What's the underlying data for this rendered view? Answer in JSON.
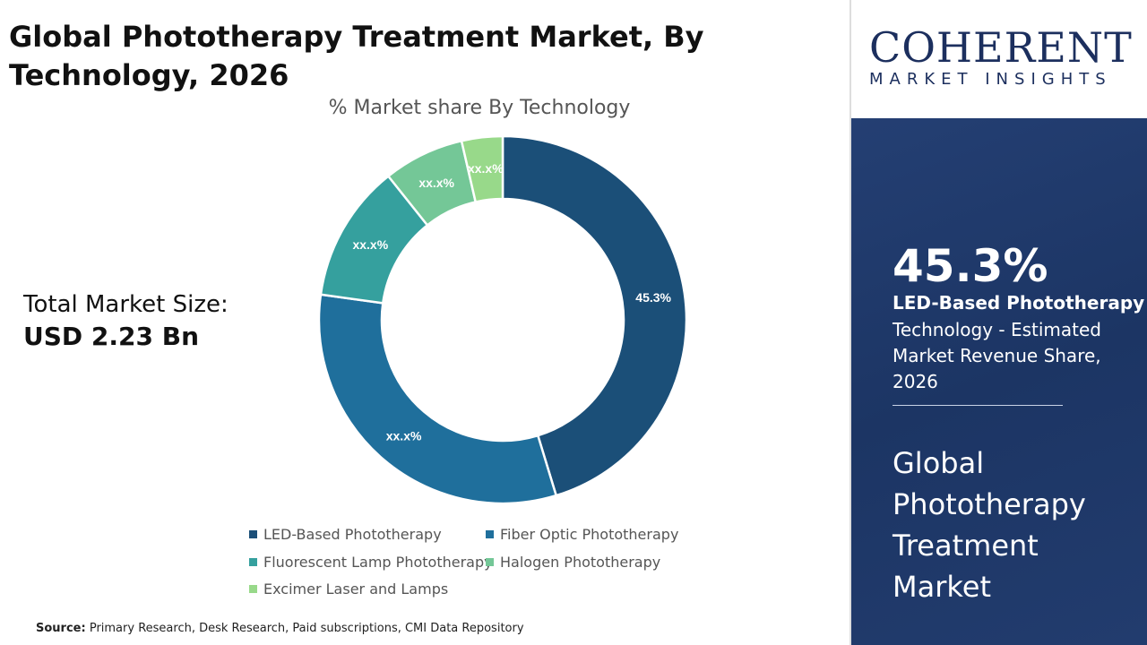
{
  "header": {
    "title": "Global Phototherapy Treatment Market, By Technology, 2026"
  },
  "total": {
    "label": "Total Market Size:",
    "value": "USD 2.23 Bn"
  },
  "source": {
    "label": "Source:",
    "text": "Primary Research, Desk Research, Paid subscriptions, CMI Data Repository"
  },
  "logo": {
    "brand": "COHERENT",
    "tagline": "MARKET INSIGHTS"
  },
  "panel": {
    "highlight_value": "45.3%",
    "highlight_label": "LED-Based Phototherapy",
    "description": "Technology - Estimated Market Revenue Share, 2026",
    "market_name": "Global Phototherapy Treatment Market"
  },
  "chart_data": {
    "type": "pie",
    "donut": true,
    "title": "% Market share By Technology",
    "categories": [
      "LED-Based Phototherapy",
      "Fiber Optic Phototherapy",
      "Fluorescent Lamp Phototherapy",
      "Halogen Phototherapy",
      "Excimer Laser and Lamps"
    ],
    "values": [
      45.3,
      31.9,
      12.1,
      7.1,
      3.6
    ],
    "data_labels": [
      "45.3%",
      "xx.x%",
      "xx.x%",
      "xx.x%",
      "xx.x%"
    ],
    "colors": [
      "#1b4f78",
      "#1f6f9c",
      "#35a09e",
      "#74c797",
      "#98d98a"
    ],
    "legend_position": "bottom"
  }
}
